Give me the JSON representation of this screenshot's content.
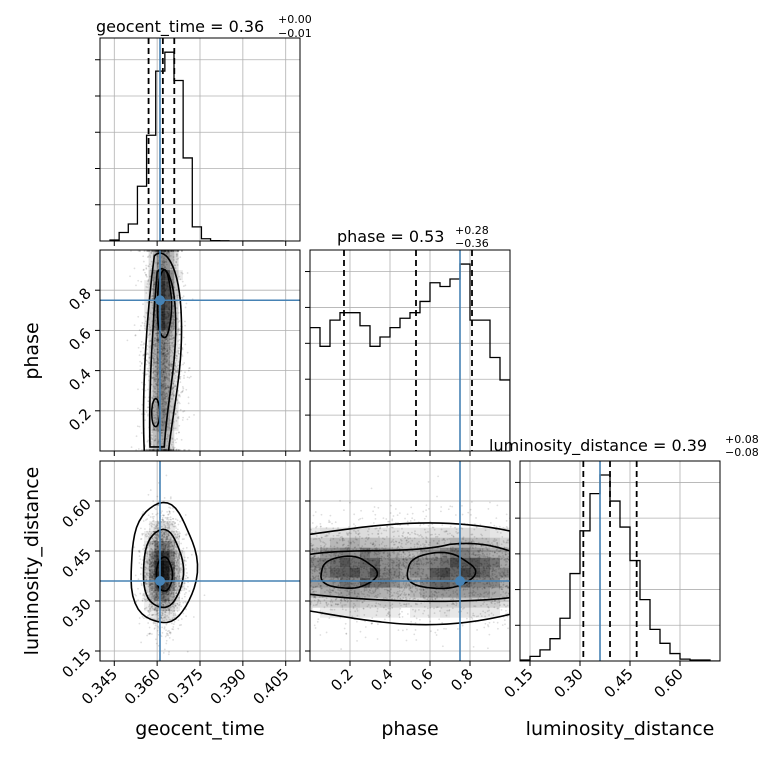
{
  "chart_data": {
    "type": "corner",
    "parameters": [
      "geocent_time",
      "phase",
      "luminosity_distance"
    ],
    "titles": [
      {
        "param": "geocent_time",
        "text": "geocent_time = 0.36",
        "upper": "+0.00",
        "lower": "−0.01",
        "median": 0.362,
        "q16": 0.357,
        "q84": 0.366,
        "truth": 0.361
      },
      {
        "param": "phase",
        "text": "phase = 0.53",
        "upper": "+0.28",
        "lower": "−0.36",
        "median": 0.53,
        "q16": 0.17,
        "q84": 0.81,
        "truth": 0.75
      },
      {
        "param": "luminosity_distance",
        "text": "luminosity_distance = 0.39",
        "upper": "+0.08",
        "lower": "−0.08",
        "median": 0.39,
        "q16": 0.31,
        "q84": 0.47,
        "truth": 0.36
      }
    ],
    "ranges": {
      "geocent_time": [
        0.34,
        0.41
      ],
      "phase": [
        0.0,
        1.0
      ],
      "luminosity_distance": [
        0.12,
        0.72
      ]
    },
    "ticks": {
      "geocent_time": [
        "0.345",
        "0.360",
        "0.375",
        "0.390",
        "0.405"
      ],
      "phase": [
        "0.2",
        "0.4",
        "0.6",
        "0.8"
      ],
      "luminosity_distance": [
        "0.15",
        "0.30",
        "0.45",
        "0.60"
      ]
    },
    "tick_values": {
      "geocent_time": [
        0.345,
        0.36,
        0.375,
        0.39,
        0.405
      ],
      "phase": [
        0.2,
        0.4,
        0.6,
        0.8
      ],
      "luminosity_distance": [
        0.15,
        0.3,
        0.45,
        0.6
      ]
    },
    "histograms": {
      "geocent_time": {
        "edges": [
          0.3435,
          0.3467,
          0.3499,
          0.3531,
          0.3563,
          0.3595,
          0.3627,
          0.3659,
          0.3691,
          0.3723,
          0.3755,
          0.3787,
          0.3819,
          0.3851,
          0.3883,
          0.3915,
          0.3947,
          0.3979,
          0.4011,
          0.4043
        ],
        "counts": [
          5,
          45,
          90,
          290,
          560,
          900,
          1000,
          850,
          440,
          75,
          12,
          2,
          1,
          0,
          0,
          0,
          0,
          0,
          0
        ]
      },
      "phase": {
        "edges": [
          0.0,
          0.05,
          0.1,
          0.15,
          0.2,
          0.25,
          0.3,
          0.35,
          0.4,
          0.45,
          0.5,
          0.55,
          0.6,
          0.65,
          0.7,
          0.75,
          0.8,
          0.85,
          0.9,
          0.95,
          1.0
        ],
        "counts": [
          660,
          560,
          700,
          740,
          740,
          670,
          560,
          610,
          660,
          710,
          740,
          800,
          900,
          880,
          920,
          1000,
          700,
          700,
          500,
          380
        ]
      },
      "luminosity_distance": {
        "edges": [
          0.12,
          0.15,
          0.18,
          0.21,
          0.24,
          0.27,
          0.3,
          0.33,
          0.36,
          0.39,
          0.42,
          0.45,
          0.48,
          0.51,
          0.54,
          0.57,
          0.6,
          0.63,
          0.66,
          0.69,
          0.72
        ],
        "counts": [
          5,
          25,
          60,
          120,
          230,
          470,
          700,
          900,
          1000,
          860,
          720,
          540,
          330,
          170,
          95,
          40,
          10,
          5,
          5,
          0
        ]
      }
    },
    "contour_levels": [
      "0.39",
      "0.86",
      "0.99"
    ],
    "grid": true,
    "colors": {
      "truth": "#4682b4",
      "hist": "#000000",
      "quantile": "#000000",
      "grid": "#b0b0b0",
      "density": "#000000"
    }
  }
}
